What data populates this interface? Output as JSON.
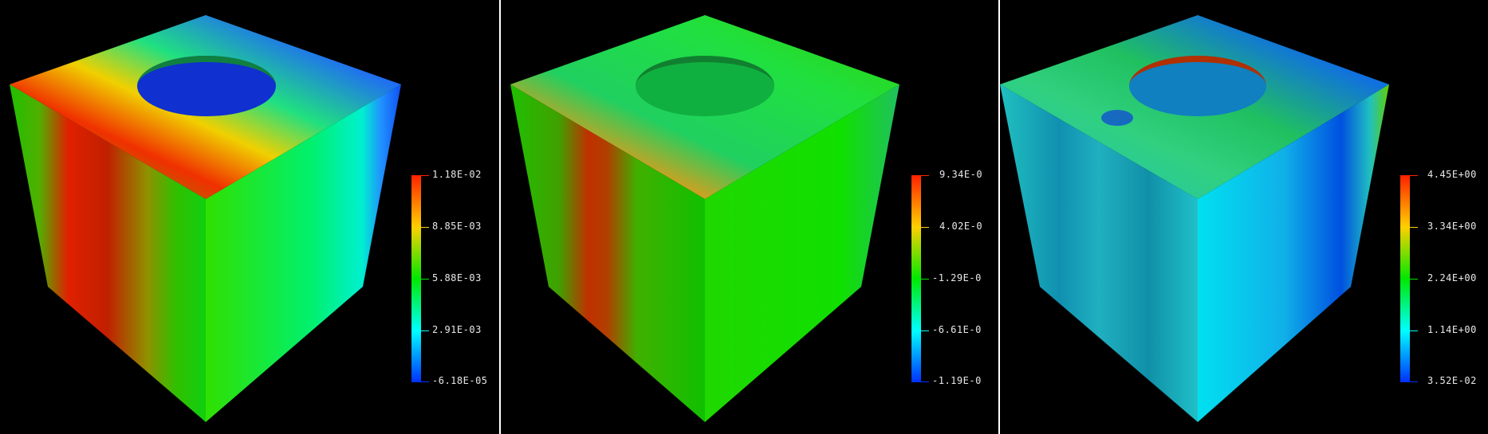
{
  "panels": [
    {
      "colorbar_labels": [
        "1.18E-02",
        "8.85E-03",
        "5.88E-03",
        "2.91E-03",
        "-6.18E-05"
      ]
    },
    {
      "colorbar_labels": [
        "9.34E-0",
        "4.02E-0",
        "-1.29E-0",
        "-6.61E-0",
        "-1.19E-0"
      ]
    },
    {
      "colorbar_labels": [
        "4.45E+00",
        "3.34E+00",
        "2.24E+00",
        "1.14E+00",
        "3.52E-02"
      ]
    }
  ],
  "colors": {
    "background": "#000000",
    "colormap": [
      "#ff2000",
      "#ffd000",
      "#00e800",
      "#00ffff",
      "#0030ff"
    ]
  }
}
